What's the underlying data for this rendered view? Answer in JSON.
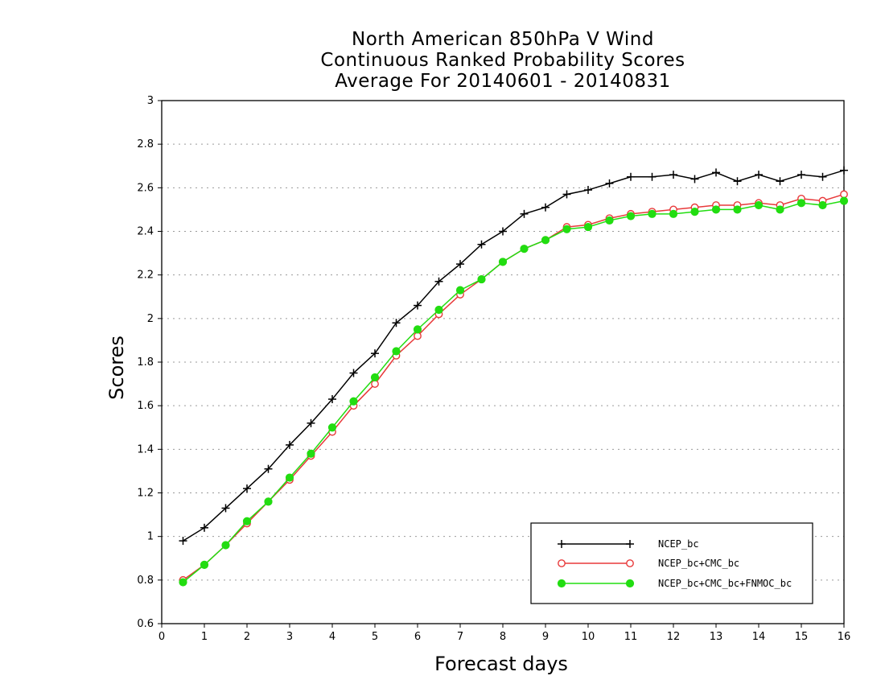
{
  "chart_data": {
    "type": "line",
    "title_lines": [
      "North American 850hPa V Wind",
      "Continuous Ranked Probability Scores",
      "Average For 20140601 - 20140831"
    ],
    "xlabel": "Forecast days",
    "ylabel": "Scores",
    "xlim": [
      0,
      16
    ],
    "ylim": [
      0.6,
      3
    ],
    "xticks": [
      "0",
      "1",
      "2",
      "3",
      "4",
      "5",
      "6",
      "7",
      "8",
      "9",
      "10",
      "11",
      "12",
      "13",
      "14",
      "15",
      "16"
    ],
    "yticks": [
      "0.6",
      "0.8",
      "1",
      "1.2",
      "1.4",
      "1.6",
      "1.8",
      "2",
      "2.2",
      "2.4",
      "2.6",
      "2.8",
      "3"
    ],
    "grid": "horizontal dotted",
    "legend_position": "bottom-right",
    "x": [
      0.5,
      1,
      1.5,
      2,
      2.5,
      3,
      3.5,
      4,
      4.5,
      5,
      5.5,
      6,
      6.5,
      7,
      7.5,
      8,
      8.5,
      9,
      9.5,
      10,
      10.5,
      11,
      11.5,
      12,
      12.5,
      13,
      13.5,
      14,
      14.5,
      15,
      15.5,
      16
    ],
    "series": [
      {
        "name": "NCEP_bc",
        "color": "#000000",
        "marker": "plus",
        "values": [
          0.98,
          1.04,
          1.13,
          1.22,
          1.31,
          1.42,
          1.52,
          1.63,
          1.75,
          1.84,
          1.98,
          2.06,
          2.17,
          2.25,
          2.34,
          2.4,
          2.48,
          2.51,
          2.57,
          2.59,
          2.62,
          2.65,
          2.65,
          2.66,
          2.64,
          2.67,
          2.63,
          2.66,
          2.63,
          2.66,
          2.65,
          2.68
        ]
      },
      {
        "name": "NCEP_bc+CMC_bc",
        "color": "#e8393a",
        "marker": "open-circle",
        "values": [
          0.8,
          0.87,
          0.96,
          1.06,
          1.16,
          1.26,
          1.37,
          1.48,
          1.6,
          1.7,
          1.83,
          1.92,
          2.02,
          2.11,
          2.18,
          2.26,
          2.32,
          2.36,
          2.42,
          2.43,
          2.46,
          2.48,
          2.49,
          2.5,
          2.51,
          2.52,
          2.52,
          2.53,
          2.52,
          2.55,
          2.54,
          2.57
        ]
      },
      {
        "name": "NCEP_bc+CMC_bc+FNMOC_bc",
        "color": "#22dd11",
        "marker": "filled-circle",
        "values": [
          0.79,
          0.87,
          0.96,
          1.07,
          1.16,
          1.27,
          1.38,
          1.5,
          1.62,
          1.73,
          1.85,
          1.95,
          2.04,
          2.13,
          2.18,
          2.26,
          2.32,
          2.36,
          2.41,
          2.42,
          2.45,
          2.47,
          2.48,
          2.48,
          2.49,
          2.5,
          2.5,
          2.52,
          2.5,
          2.53,
          2.52,
          2.54
        ]
      }
    ]
  }
}
